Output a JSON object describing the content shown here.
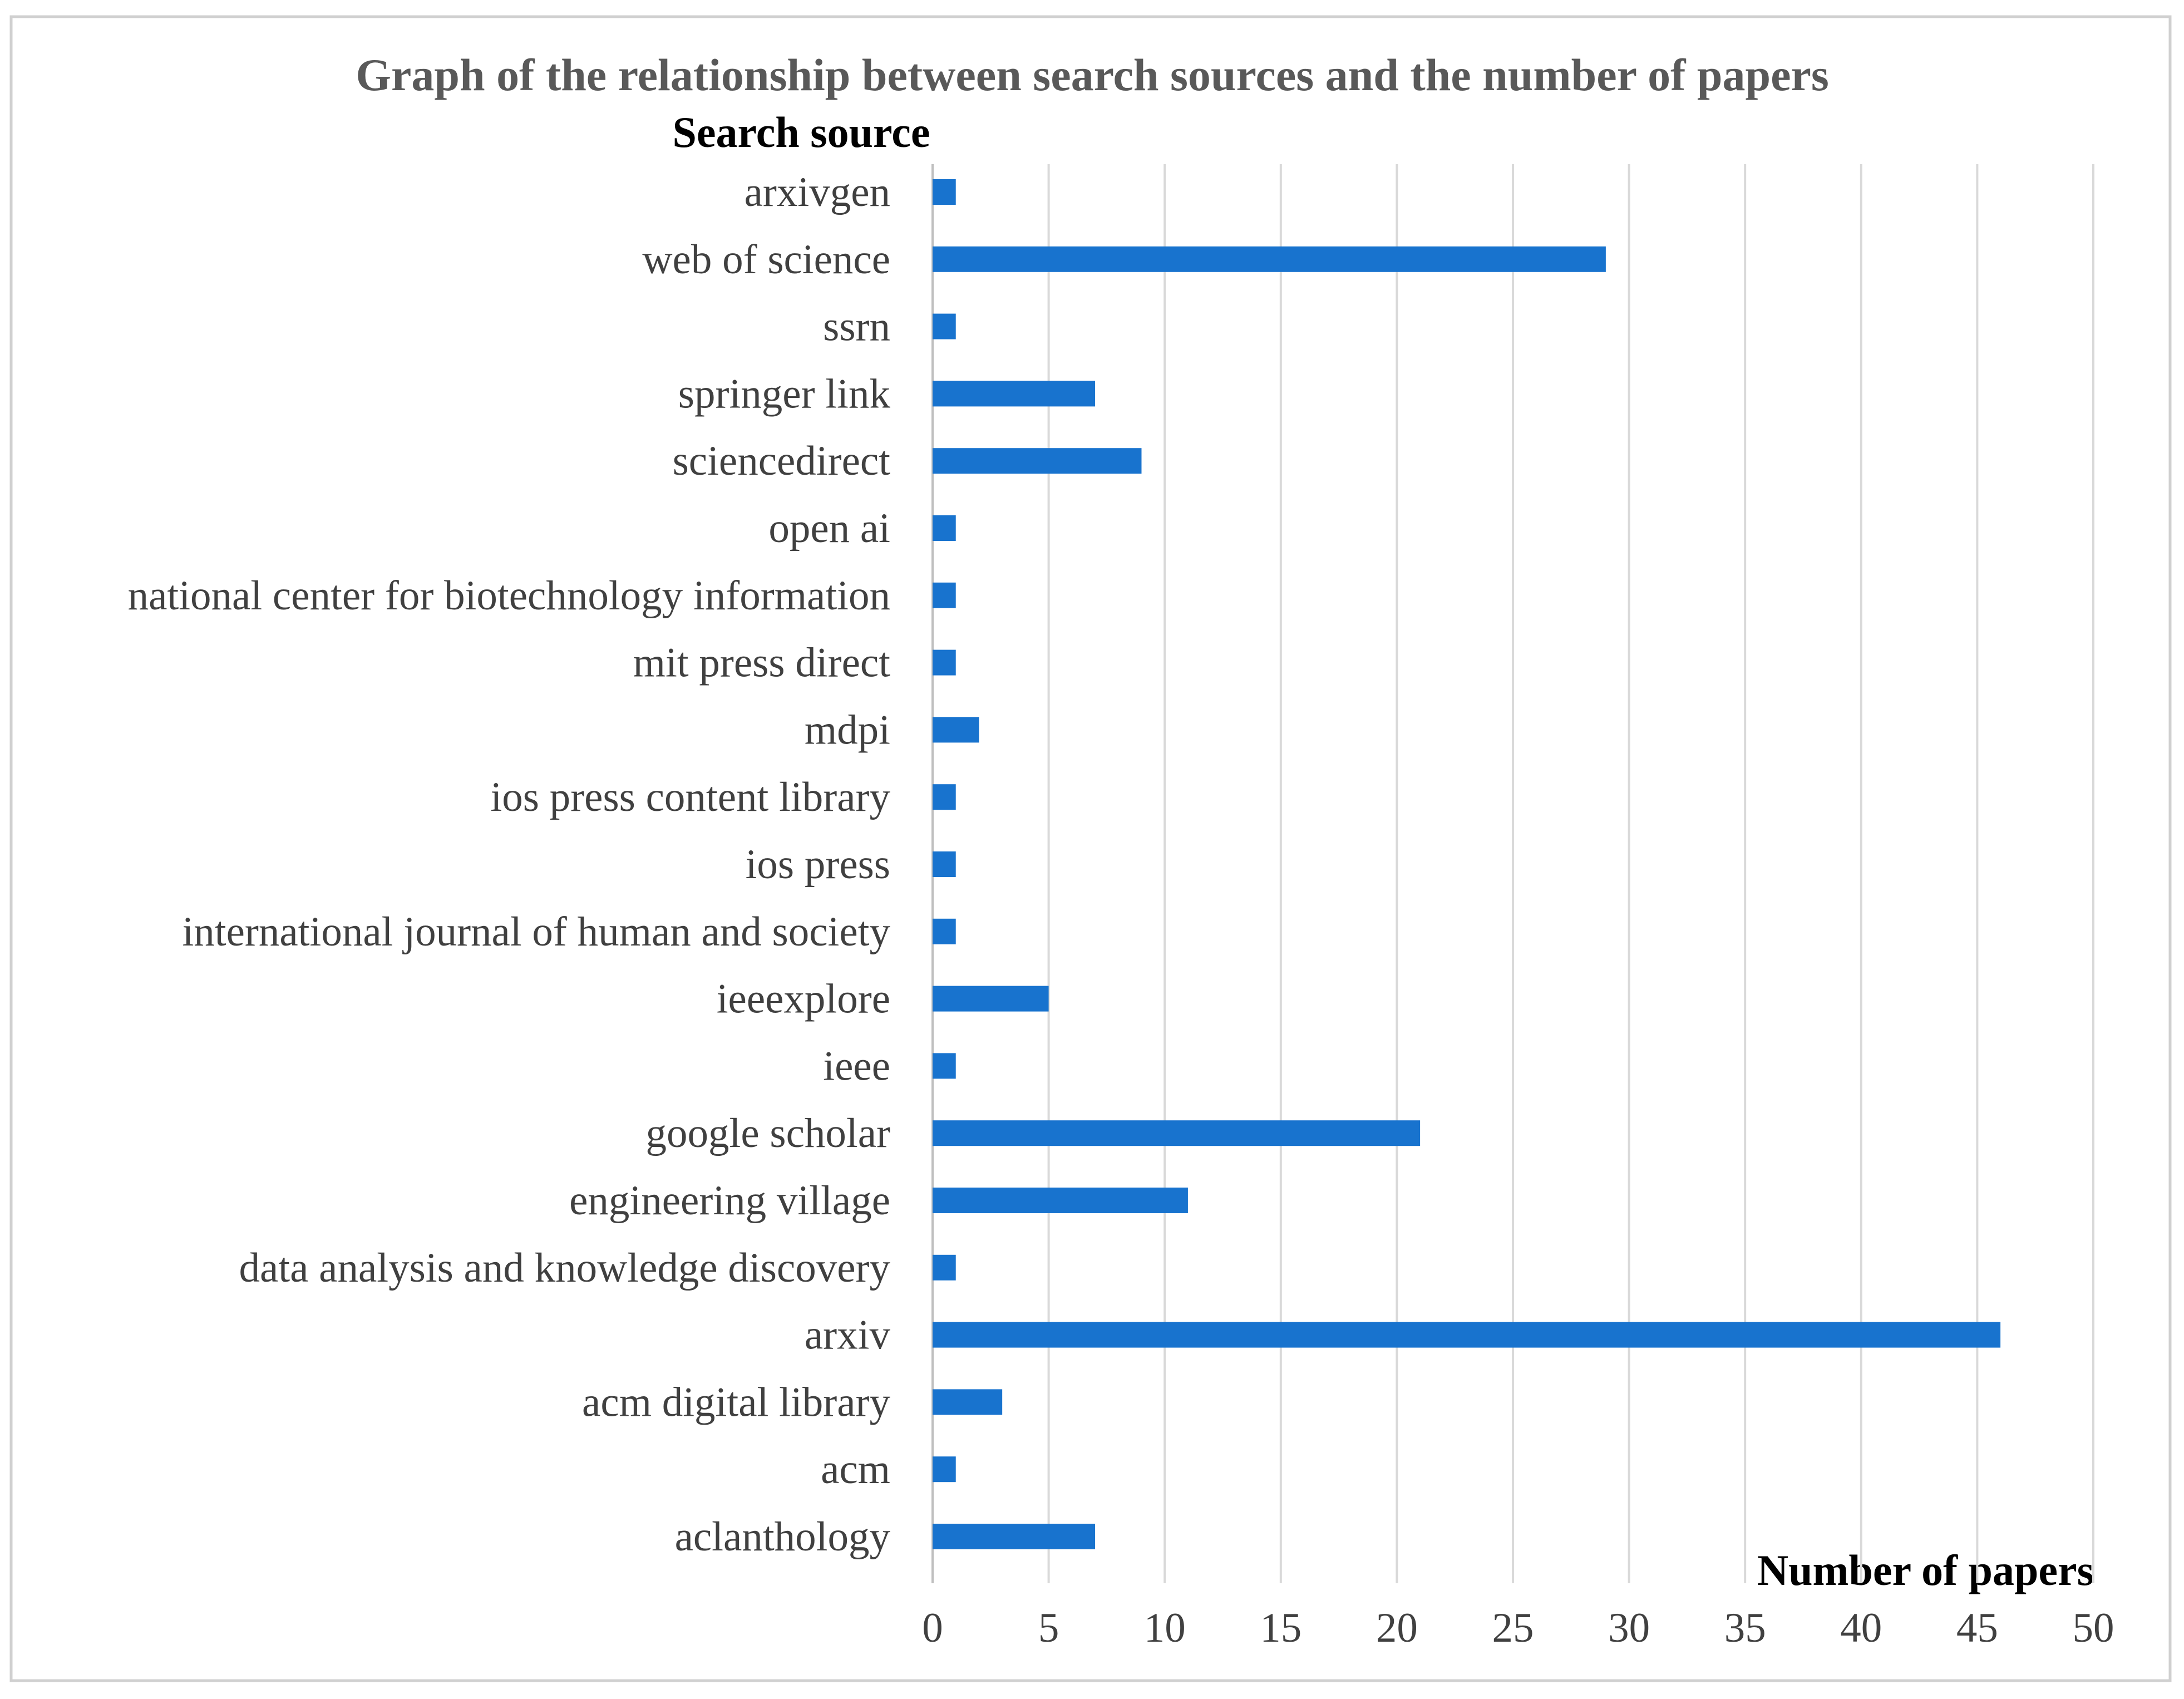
{
  "colors": {
    "bar": "#1873CE",
    "grid": "#d9d9d9",
    "text": "#404040",
    "title": "#595959"
  },
  "chart_data": {
    "type": "bar",
    "orientation": "horizontal",
    "title": "Graph of the relationship between search sources and the number of papers",
    "ylabel": "Search source",
    "xlabel": "Number of papers",
    "categories": [
      "arxivgen",
      "web of science",
      "ssrn",
      "springer link",
      "sciencedirect",
      "open ai",
      "national center for biotechnology information",
      "mit press direct",
      "mdpi",
      "ios press content library",
      "ios press",
      "international journal of human and society",
      "ieeexplore",
      "ieee",
      "google scholar",
      "engineering village",
      "data analysis and knowledge discovery",
      "arxiv",
      "acm digital library",
      "acm",
      "aclanthology"
    ],
    "values": [
      1,
      29,
      1,
      7,
      9,
      1,
      1,
      1,
      2,
      1,
      1,
      1,
      5,
      1,
      21,
      11,
      1,
      46,
      3,
      1,
      7
    ],
    "xlim": [
      0,
      50
    ],
    "xticks": [
      0,
      5,
      10,
      15,
      20,
      25,
      30,
      35,
      40,
      45,
      50
    ],
    "grid": "vertical",
    "legend": "none"
  }
}
